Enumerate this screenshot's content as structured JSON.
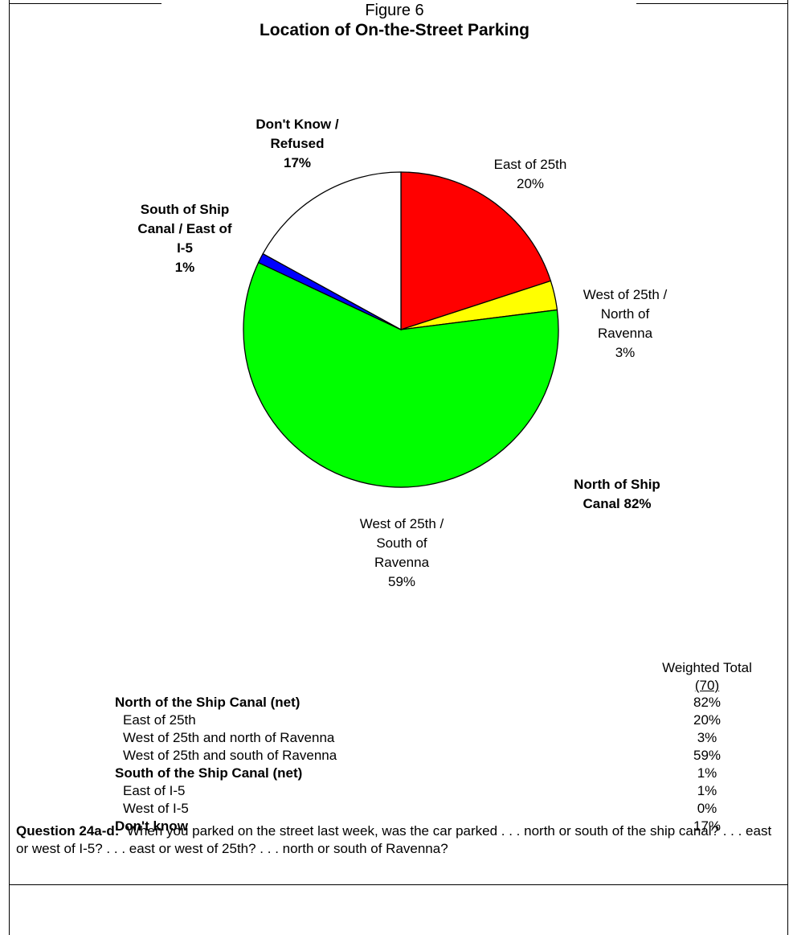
{
  "figure_label": "Figure 6",
  "title": "Location of On-the-Street Parking",
  "chart_data": {
    "type": "pie",
    "title": "Location of On-the-Street Parking",
    "slices": [
      {
        "label_lines": [
          "East of 25th",
          "20%"
        ],
        "value": 20,
        "color": "#ff0000",
        "bold": false
      },
      {
        "label_lines": [
          "West of 25th /",
          "North of",
          "Ravenna",
          "3%"
        ],
        "value": 3,
        "color": "#ffff00",
        "bold": false
      },
      {
        "label_lines": [
          "West of 25th /",
          "South of",
          "Ravenna",
          "59%"
        ],
        "value": 59,
        "color": "#00ff00",
        "bold": false
      },
      {
        "label_lines": [
          "South of Ship",
          "Canal / East of",
          "I-5",
          "1%"
        ],
        "value": 1,
        "color": "#0000ff",
        "bold": true
      },
      {
        "label_lines": [
          "Don't Know /",
          "Refused",
          "17%"
        ],
        "value": 17,
        "color": "#ffffff",
        "bold": true
      }
    ],
    "group_annotation": [
      "North of Ship",
      "Canal 82%"
    ]
  },
  "table": {
    "column_header": "Weighted Total",
    "n": "(70)",
    "rows": [
      {
        "label": "North of the Ship Canal (net)",
        "value": "82%",
        "bold": true
      },
      {
        "label": "East of 25th",
        "value": "20%",
        "bold": false
      },
      {
        "label": "West of 25th and north of Ravenna",
        "value": "3%",
        "bold": false
      },
      {
        "label": "West of 25th and south of Ravenna",
        "value": "59%",
        "bold": false
      },
      {
        "label": "South of the Ship Canal (net)",
        "value": "1%",
        "bold": true
      },
      {
        "label": "East of I-5",
        "value": "1%",
        "bold": false
      },
      {
        "label": "West of I-5",
        "value": "0%",
        "bold": false
      },
      {
        "label": "Don't know",
        "value": "17%",
        "bold": true
      }
    ]
  },
  "question": {
    "label": "Question 24a-d:",
    "text": "When you parked on the street last week, was the car parked . . . north or south of the ship canal? . . . east or west of I-5? . . . east or west of 25th? . . . north or south of Ravenna?"
  }
}
